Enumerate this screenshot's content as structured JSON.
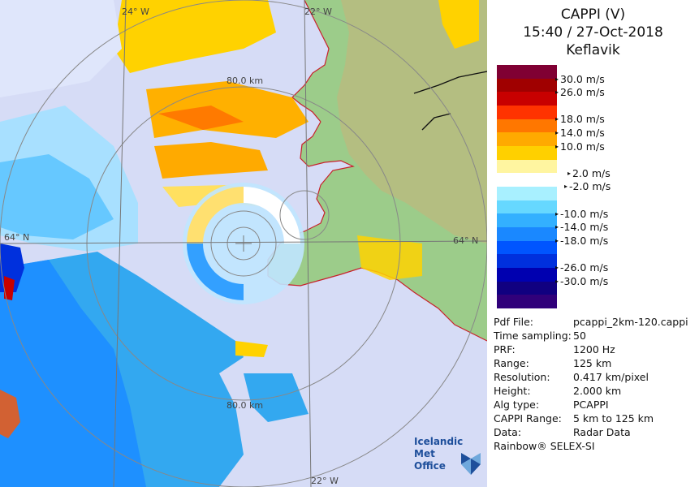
{
  "panel": {
    "title_line1": "CAPPI (V)",
    "title_line2": "15:40 / 27-Oct-2018",
    "title_line3": "Keflavik",
    "scale": [
      {
        "color": "#800033"
      },
      {
        "color": "#a00000"
      },
      {
        "color": "#c80000"
      },
      {
        "color": "#ff3300"
      },
      {
        "color": "#ff7700"
      },
      {
        "color": "#ffaa00"
      },
      {
        "color": "#ffd000"
      },
      {
        "color": "#fff5a0"
      },
      {
        "color": "#ffffff"
      },
      {
        "color": "#a8f0ff"
      },
      {
        "color": "#66d8ff"
      },
      {
        "color": "#33b0ff"
      },
      {
        "color": "#1a88ff"
      },
      {
        "color": "#0055ff"
      },
      {
        "color": "#0030dd"
      },
      {
        "color": "#0000b0"
      },
      {
        "color": "#100080"
      },
      {
        "color": "#30007a"
      }
    ],
    "scale_labels": [
      "30.0 m/s",
      "26.0 m/s",
      "18.0 m/s",
      "14.0 m/s",
      "10.0 m/s",
      "2.0 m/s",
      "-2.0 m/s",
      "-10.0 m/s",
      "-14.0 m/s",
      "-18.0 m/s",
      "-26.0 m/s",
      "-30.0 m/s"
    ],
    "info": [
      {
        "k": "Pdf File:",
        "v": "pcappi_2km-120.cappi"
      },
      {
        "k": "Time sampling:",
        "v": "50"
      },
      {
        "k": "PRF:",
        "v": "1200 Hz"
      },
      {
        "k": "Range:",
        "v": "125 km"
      },
      {
        "k": "Resolution:",
        "v": "0.417 km/pixel"
      },
      {
        "k": "Height:",
        "v": "2.000 km"
      },
      {
        "k": "Alg type:",
        "v": "PCAPPI"
      },
      {
        "k": "CAPPI Range:",
        "v": "5 km to 125 km"
      },
      {
        "k": "Data:",
        "v": "Radar Data"
      }
    ],
    "footer": "Rainbow® SELEX-SI"
  },
  "map": {
    "lon_label_top_left": "24° W",
    "lon_label_top_right": "22° W",
    "lon_label_bottom": "22° W",
    "lat_label_left": "64° N",
    "lat_label_right": "64° N",
    "ring_label_top": "80.0 km",
    "ring_label_bottom": "80.0 km",
    "logo_line1": "Icelandic Met",
    "logo_line2": "Office"
  }
}
